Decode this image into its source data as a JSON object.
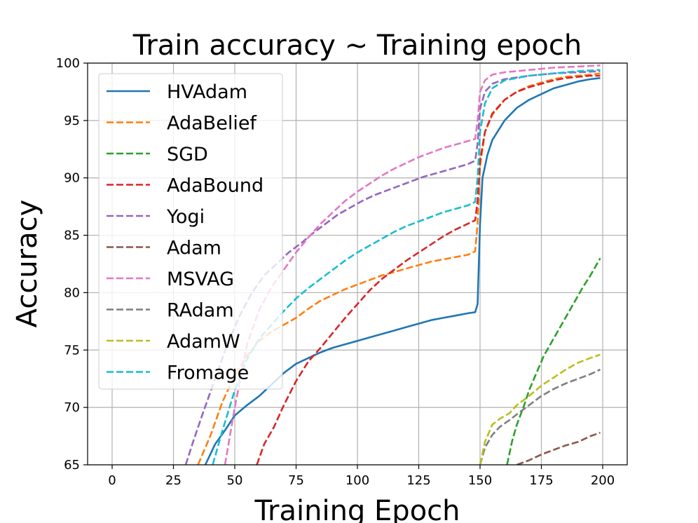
{
  "chart_data": {
    "type": "line",
    "title": "Train accuracy ~ Training epoch",
    "xlabel": "Training Epoch",
    "ylabel": "Accuracy",
    "xlim": [
      -10,
      210
    ],
    "ylim": [
      65,
      100
    ],
    "xticks": [
      "0",
      "25",
      "50",
      "75",
      "100",
      "125",
      "150",
      "175",
      "200"
    ],
    "yticks": [
      "65",
      "70",
      "75",
      "80",
      "85",
      "90",
      "95",
      "100"
    ],
    "grid": true,
    "legend_position": "upper-left",
    "series": [
      {
        "name": "HVAdam",
        "color": "#1f77b4",
        "dash": "solid",
        "points": [
          [
            38,
            65
          ],
          [
            42,
            66.8
          ],
          [
            46,
            68
          ],
          [
            50,
            69.3
          ],
          [
            55,
            70.2
          ],
          [
            60,
            71
          ],
          [
            65,
            72
          ],
          [
            70,
            73
          ],
          [
            75,
            73.8
          ],
          [
            80,
            74.3
          ],
          [
            85,
            74.8
          ],
          [
            90,
            75.2
          ],
          [
            95,
            75.5
          ],
          [
            100,
            75.8
          ],
          [
            105,
            76.1
          ],
          [
            110,
            76.4
          ],
          [
            115,
            76.7
          ],
          [
            120,
            77
          ],
          [
            125,
            77.3
          ],
          [
            130,
            77.6
          ],
          [
            135,
            77.8
          ],
          [
            140,
            78
          ],
          [
            145,
            78.2
          ],
          [
            148,
            78.3
          ],
          [
            149,
            79
          ],
          [
            150,
            86
          ],
          [
            151,
            90
          ],
          [
            153,
            92
          ],
          [
            155,
            93.3
          ],
          [
            160,
            95
          ],
          [
            165,
            96.1
          ],
          [
            170,
            96.8
          ],
          [
            175,
            97.3
          ],
          [
            180,
            97.8
          ],
          [
            185,
            98.1
          ],
          [
            190,
            98.4
          ],
          [
            195,
            98.6
          ],
          [
            199,
            98.7
          ]
        ]
      },
      {
        "name": "AdaBelief",
        "color": "#ff7f0e",
        "dash": "dashed",
        "points": [
          [
            35,
            65
          ],
          [
            40,
            67.5
          ],
          [
            45,
            70.5
          ],
          [
            50,
            72.8
          ],
          [
            55,
            74.5
          ],
          [
            60,
            75.8
          ],
          [
            65,
            76.6
          ],
          [
            70,
            77.2
          ],
          [
            75,
            77.8
          ],
          [
            80,
            78.6
          ],
          [
            85,
            79.3
          ],
          [
            90,
            79.8
          ],
          [
            95,
            80.3
          ],
          [
            100,
            80.7
          ],
          [
            105,
            81.1
          ],
          [
            110,
            81.5
          ],
          [
            115,
            81.8
          ],
          [
            120,
            82.1
          ],
          [
            125,
            82.4
          ],
          [
            130,
            82.7
          ],
          [
            135,
            82.9
          ],
          [
            140,
            83.1
          ],
          [
            145,
            83.3
          ],
          [
            148,
            83.6
          ],
          [
            149,
            86
          ],
          [
            150,
            91
          ],
          [
            152,
            94
          ],
          [
            155,
            95.5
          ],
          [
            160,
            96.8
          ],
          [
            165,
            97.5
          ],
          [
            170,
            98
          ],
          [
            175,
            98.3
          ],
          [
            180,
            98.6
          ],
          [
            185,
            98.8
          ],
          [
            190,
            98.9
          ],
          [
            195,
            99
          ],
          [
            199,
            99.1
          ]
        ]
      },
      {
        "name": "SGD",
        "color": "#2ca02c",
        "dash": "dashed",
        "points": [
          [
            161,
            65
          ],
          [
            163,
            67
          ],
          [
            165,
            68.5
          ],
          [
            168,
            70.2
          ],
          [
            170,
            71.5
          ],
          [
            173,
            73
          ],
          [
            176,
            74.5
          ],
          [
            180,
            76
          ],
          [
            184,
            77.5
          ],
          [
            188,
            79
          ],
          [
            192,
            80.5
          ],
          [
            195,
            81.5
          ],
          [
            199,
            83
          ]
        ]
      },
      {
        "name": "AdaBound",
        "color": "#d62728",
        "dash": "dashed",
        "points": [
          [
            59,
            65
          ],
          [
            62,
            66.8
          ],
          [
            66,
            68.3
          ],
          [
            70,
            70.2
          ],
          [
            75,
            72.3
          ],
          [
            80,
            74
          ],
          [
            85,
            75.2
          ],
          [
            90,
            76.5
          ],
          [
            95,
            77.8
          ],
          [
            100,
            79
          ],
          [
            105,
            80.2
          ],
          [
            110,
            81.2
          ],
          [
            115,
            82
          ],
          [
            120,
            82.8
          ],
          [
            125,
            83.5
          ],
          [
            130,
            84.2
          ],
          [
            135,
            84.9
          ],
          [
            140,
            85.5
          ],
          [
            145,
            86
          ],
          [
            148,
            86.3
          ],
          [
            149,
            88
          ],
          [
            150,
            91.5
          ],
          [
            152,
            94
          ],
          [
            155,
            95.6
          ],
          [
            160,
            96.8
          ],
          [
            165,
            97.5
          ],
          [
            170,
            97.9
          ],
          [
            175,
            98.2
          ],
          [
            180,
            98.5
          ],
          [
            185,
            98.7
          ],
          [
            190,
            98.8
          ],
          [
            195,
            98.9
          ],
          [
            199,
            98.9
          ]
        ]
      },
      {
        "name": "Yogi",
        "color": "#9467bd",
        "dash": "dashed",
        "points": [
          [
            30,
            65
          ],
          [
            33,
            67
          ],
          [
            37,
            69.5
          ],
          [
            42,
            72.5
          ],
          [
            47,
            75.5
          ],
          [
            52,
            78
          ],
          [
            57,
            80
          ],
          [
            62,
            81.5
          ],
          [
            67,
            82.5
          ],
          [
            72,
            83.5
          ],
          [
            77,
            84.3
          ],
          [
            82,
            85.2
          ],
          [
            87,
            86
          ],
          [
            92,
            86.8
          ],
          [
            97,
            87.4
          ],
          [
            102,
            88
          ],
          [
            107,
            88.5
          ],
          [
            112,
            88.9
          ],
          [
            117,
            89.3
          ],
          [
            122,
            89.7
          ],
          [
            127,
            90.1
          ],
          [
            132,
            90.4
          ],
          [
            137,
            90.7
          ],
          [
            142,
            91
          ],
          [
            145,
            91.2
          ],
          [
            148,
            91.5
          ],
          [
            149,
            93
          ],
          [
            150,
            96
          ],
          [
            152,
            97.5
          ],
          [
            155,
            98.2
          ],
          [
            160,
            98.6
          ],
          [
            170,
            98.9
          ],
          [
            180,
            99.1
          ],
          [
            190,
            99.2
          ],
          [
            199,
            99.3
          ]
        ]
      },
      {
        "name": "Adam",
        "color": "#8c564b",
        "dash": "dashed",
        "points": [
          [
            165,
            65
          ],
          [
            170,
            65.4
          ],
          [
            175,
            65.9
          ],
          [
            180,
            66.3
          ],
          [
            185,
            66.7
          ],
          [
            190,
            67
          ],
          [
            195,
            67.5
          ],
          [
            199,
            67.8
          ]
        ]
      },
      {
        "name": "MSVAG",
        "color": "#e377c2",
        "dash": "dashed",
        "points": [
          [
            46,
            65
          ],
          [
            50,
            70
          ],
          [
            55,
            75.5
          ],
          [
            60,
            78.5
          ],
          [
            65,
            80.5
          ],
          [
            70,
            82
          ],
          [
            75,
            83.5
          ],
          [
            80,
            84.8
          ],
          [
            85,
            86
          ],
          [
            90,
            87
          ],
          [
            95,
            88
          ],
          [
            100,
            88.8
          ],
          [
            105,
            89.5
          ],
          [
            110,
            90.2
          ],
          [
            115,
            90.8
          ],
          [
            120,
            91.3
          ],
          [
            125,
            91.8
          ],
          [
            130,
            92.2
          ],
          [
            135,
            92.6
          ],
          [
            140,
            92.9
          ],
          [
            145,
            93.2
          ],
          [
            148,
            93.4
          ],
          [
            149,
            95
          ],
          [
            150,
            97.5
          ],
          [
            152,
            98.5
          ],
          [
            155,
            99
          ],
          [
            160,
            99.2
          ],
          [
            170,
            99.4
          ],
          [
            180,
            99.6
          ],
          [
            190,
            99.7
          ],
          [
            199,
            99.8
          ]
        ]
      },
      {
        "name": "RAdam",
        "color": "#7f7f7f",
        "dash": "dashed",
        "points": [
          [
            150,
            65
          ],
          [
            152,
            66.5
          ],
          [
            155,
            67.6
          ],
          [
            158,
            68.3
          ],
          [
            162,
            68.9
          ],
          [
            165,
            69.4
          ],
          [
            170,
            70.2
          ],
          [
            175,
            71
          ],
          [
            180,
            71.6
          ],
          [
            185,
            72.1
          ],
          [
            190,
            72.5
          ],
          [
            195,
            72.9
          ],
          [
            199,
            73.3
          ]
        ]
      },
      {
        "name": "AdamW",
        "color": "#bcbd22",
        "dash": "dashed",
        "points": [
          [
            150,
            65
          ],
          [
            152,
            67
          ],
          [
            155,
            68.5
          ],
          [
            158,
            69
          ],
          [
            162,
            69.5
          ],
          [
            165,
            70.2
          ],
          [
            170,
            71
          ],
          [
            175,
            71.9
          ],
          [
            180,
            72.6
          ],
          [
            185,
            73.3
          ],
          [
            190,
            73.9
          ],
          [
            195,
            74.3
          ],
          [
            199,
            74.6
          ]
        ]
      },
      {
        "name": "Fromage",
        "color": "#17becf",
        "dash": "dashed",
        "points": [
          [
            41,
            65
          ],
          [
            45,
            68
          ],
          [
            50,
            71.5
          ],
          [
            55,
            74.2
          ],
          [
            60,
            76
          ],
          [
            65,
            77.2
          ],
          [
            70,
            78.4
          ],
          [
            75,
            79.5
          ],
          [
            80,
            80.4
          ],
          [
            85,
            81.2
          ],
          [
            90,
            82
          ],
          [
            95,
            82.8
          ],
          [
            100,
            83.5
          ],
          [
            105,
            84.1
          ],
          [
            110,
            84.7
          ],
          [
            115,
            85.3
          ],
          [
            120,
            85.8
          ],
          [
            125,
            86.2
          ],
          [
            130,
            86.6
          ],
          [
            135,
            87
          ],
          [
            140,
            87.3
          ],
          [
            145,
            87.6
          ],
          [
            148,
            87.9
          ],
          [
            149,
            90
          ],
          [
            150,
            94
          ],
          [
            152,
            96.5
          ],
          [
            155,
            97.8
          ],
          [
            160,
            98.5
          ],
          [
            170,
            98.9
          ],
          [
            180,
            99.1
          ],
          [
            190,
            99.3
          ],
          [
            199,
            99.4
          ]
        ]
      }
    ]
  }
}
